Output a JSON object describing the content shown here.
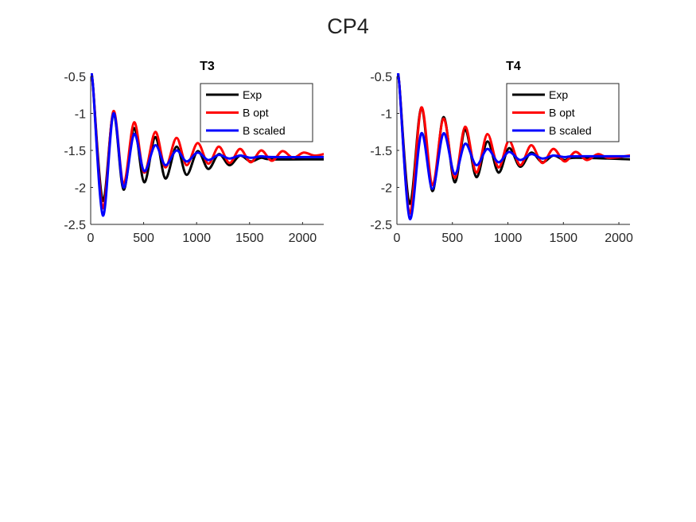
{
  "figure_title": "CP4",
  "chart_data": [
    {
      "type": "line",
      "title": "T3",
      "xlabel": "",
      "ylabel": "",
      "xlim": [
        0,
        2200
      ],
      "ylim": [
        -2.5,
        -0.5
      ],
      "xticks": [
        0,
        500,
        1000,
        1500,
        2000
      ],
      "yticks": [
        -2.5,
        -2,
        -1.5,
        -1,
        -0.5
      ],
      "xtick_labels": [
        "0",
        "500",
        "1000",
        "1500",
        "2000"
      ],
      "ytick_labels": [
        "-2.5",
        "-2",
        "-1.5",
        "-1",
        "-0.5"
      ],
      "grid": false,
      "legend_position": "top-right",
      "series": [
        {
          "name": "Exp",
          "color": "#000000",
          "x": [
            0,
            20,
            115,
            215,
            310,
            410,
            505,
            610,
            705,
            810,
            905,
            1010,
            1110,
            1210,
            1310,
            1410,
            1510,
            1610,
            1710,
            2200
          ],
          "y": [
            -0.5,
            -0.6,
            -2.18,
            -1.0,
            -2.03,
            -1.2,
            -1.93,
            -1.32,
            -1.88,
            -1.45,
            -1.83,
            -1.51,
            -1.75,
            -1.55,
            -1.7,
            -1.57,
            -1.65,
            -1.6,
            -1.62,
            -1.62
          ]
        },
        {
          "name": "B opt",
          "color": "#ff0000",
          "x": [
            0,
            20,
            115,
            215,
            310,
            410,
            505,
            610,
            705,
            810,
            905,
            1010,
            1110,
            1210,
            1310,
            1410,
            1510,
            1610,
            1710,
            1810,
            1910,
            2010,
            2110,
            2200
          ],
          "y": [
            -0.5,
            -0.6,
            -2.28,
            -0.97,
            -1.95,
            -1.12,
            -1.8,
            -1.25,
            -1.73,
            -1.33,
            -1.7,
            -1.4,
            -1.68,
            -1.45,
            -1.67,
            -1.48,
            -1.66,
            -1.5,
            -1.64,
            -1.51,
            -1.6,
            -1.53,
            -1.57,
            -1.55
          ]
        },
        {
          "name": "B scaled",
          "color": "#0000ff",
          "x": [
            0,
            20,
            115,
            215,
            310,
            410,
            505,
            610,
            705,
            810,
            905,
            1010,
            1110,
            1210,
            1310,
            1410,
            1510,
            1610,
            1710,
            2200
          ],
          "y": [
            -0.5,
            -0.6,
            -2.38,
            -1.0,
            -2.0,
            -1.28,
            -1.78,
            -1.43,
            -1.7,
            -1.5,
            -1.65,
            -1.53,
            -1.63,
            -1.56,
            -1.61,
            -1.57,
            -1.6,
            -1.58,
            -1.59,
            -1.59
          ]
        }
      ]
    },
    {
      "type": "line",
      "title": "T4",
      "xlabel": "",
      "ylabel": "",
      "xlim": [
        0,
        2100
      ],
      "ylim": [
        -2.5,
        -0.5
      ],
      "xticks": [
        0,
        500,
        1000,
        1500,
        2000
      ],
      "yticks": [
        -2.5,
        -2,
        -1.5,
        -1,
        -0.5
      ],
      "xtick_labels": [
        "0",
        "500",
        "1000",
        "1500",
        "2000"
      ],
      "ytick_labels": [
        "-2.5",
        "-2",
        "-1.5",
        "-1",
        "-0.5"
      ],
      "grid": false,
      "legend_position": "top-right",
      "series": [
        {
          "name": "Exp",
          "color": "#000000",
          "x": [
            0,
            20,
            115,
            220,
            320,
            420,
            520,
            615,
            715,
            815,
            915,
            1010,
            1110,
            1210,
            1310,
            1410,
            1510,
            1610,
            2100
          ],
          "y": [
            -0.52,
            -0.58,
            -2.22,
            -0.92,
            -2.05,
            -1.05,
            -1.93,
            -1.22,
            -1.86,
            -1.38,
            -1.8,
            -1.47,
            -1.72,
            -1.53,
            -1.66,
            -1.57,
            -1.63,
            -1.6,
            -1.62
          ]
        },
        {
          "name": "B opt",
          "color": "#ff0000",
          "x": [
            0,
            20,
            115,
            220,
            320,
            420,
            520,
            615,
            715,
            815,
            915,
            1010,
            1110,
            1210,
            1310,
            1410,
            1510,
            1610,
            1710,
            1810,
            1910,
            2100
          ],
          "y": [
            -0.52,
            -0.58,
            -2.35,
            -0.92,
            -1.97,
            -1.07,
            -1.87,
            -1.18,
            -1.8,
            -1.28,
            -1.73,
            -1.37,
            -1.7,
            -1.43,
            -1.67,
            -1.48,
            -1.65,
            -1.52,
            -1.63,
            -1.55,
            -1.6,
            -1.57
          ]
        },
        {
          "name": "B scaled",
          "color": "#0000ff",
          "x": [
            0,
            20,
            115,
            220,
            320,
            420,
            520,
            615,
            715,
            815,
            915,
            1010,
            1110,
            1210,
            1310,
            1410,
            1510,
            1610,
            2100
          ],
          "y": [
            -0.52,
            -0.58,
            -2.42,
            -1.27,
            -2.02,
            -1.27,
            -1.82,
            -1.41,
            -1.7,
            -1.48,
            -1.66,
            -1.52,
            -1.63,
            -1.55,
            -1.61,
            -1.57,
            -1.59,
            -1.58,
            -1.58
          ]
        }
      ]
    }
  ]
}
